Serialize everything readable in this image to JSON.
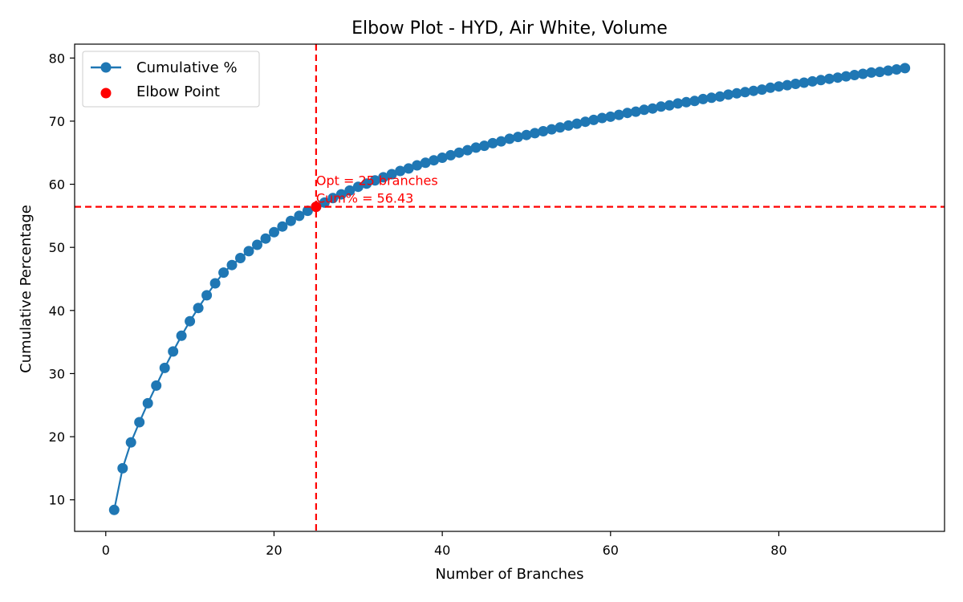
{
  "chart_data": {
    "type": "line",
    "title": "Elbow Plot - HYD, Air White, Volume",
    "xlabel": "Number of Branches",
    "ylabel": "Cumulative Percentage",
    "xlim": [
      -3.7,
      99.7
    ],
    "ylim": [
      5.0,
      82.2
    ],
    "xticks": [
      0,
      20,
      40,
      60,
      80
    ],
    "yticks": [
      10,
      20,
      30,
      40,
      50,
      60,
      70,
      80
    ],
    "grid": false,
    "legend_position": "top-left",
    "series": [
      {
        "name": "Cumulative %",
        "color": "#1f77b4",
        "marker": "circle",
        "x": [
          1,
          2,
          3,
          4,
          5,
          6,
          7,
          8,
          9,
          10,
          11,
          12,
          13,
          14,
          15,
          16,
          17,
          18,
          19,
          20,
          21,
          22,
          23,
          24,
          25,
          26,
          27,
          28,
          29,
          30,
          31,
          32,
          33,
          34,
          35,
          36,
          37,
          38,
          39,
          40,
          41,
          42,
          43,
          44,
          45,
          46,
          47,
          48,
          49,
          50,
          51,
          52,
          53,
          54,
          55,
          56,
          57,
          58,
          59,
          60,
          61,
          62,
          63,
          64,
          65,
          66,
          67,
          68,
          69,
          70,
          71,
          72,
          73,
          74,
          75,
          76,
          77,
          78,
          79,
          80,
          81,
          82,
          83,
          84,
          85,
          86,
          87,
          88,
          89,
          90,
          91,
          92,
          93,
          94,
          95
        ],
        "y": [
          8.4,
          15.0,
          19.1,
          22.3,
          25.3,
          28.1,
          30.9,
          33.5,
          36.0,
          38.3,
          40.4,
          42.4,
          44.3,
          46.0,
          47.2,
          48.3,
          49.4,
          50.4,
          51.4,
          52.4,
          53.3,
          54.2,
          55.0,
          55.8,
          56.43,
          57.1,
          57.8,
          58.4,
          59.0,
          59.6,
          60.1,
          60.6,
          61.1,
          61.6,
          62.1,
          62.5,
          63.0,
          63.4,
          63.8,
          64.2,
          64.6,
          65.0,
          65.4,
          65.8,
          66.1,
          66.5,
          66.8,
          67.2,
          67.5,
          67.8,
          68.1,
          68.4,
          68.7,
          69.0,
          69.3,
          69.6,
          69.9,
          70.2,
          70.5,
          70.7,
          71.0,
          71.3,
          71.5,
          71.8,
          72.0,
          72.3,
          72.5,
          72.8,
          73.0,
          73.2,
          73.5,
          73.7,
          73.9,
          74.2,
          74.4,
          74.6,
          74.8,
          75.0,
          75.3,
          75.5,
          75.7,
          75.9,
          76.1,
          76.3,
          76.5,
          76.7,
          76.9,
          77.1,
          77.3,
          77.5,
          77.7,
          77.8,
          78.0,
          78.2,
          78.4
        ]
      }
    ],
    "elbow": {
      "name": "Elbow Point",
      "x": 25,
      "y": 56.43,
      "color": "#ff0000",
      "annotation_line1": "Opt = 25 branches",
      "annotation_line2": "Cum% = 56.43"
    }
  }
}
